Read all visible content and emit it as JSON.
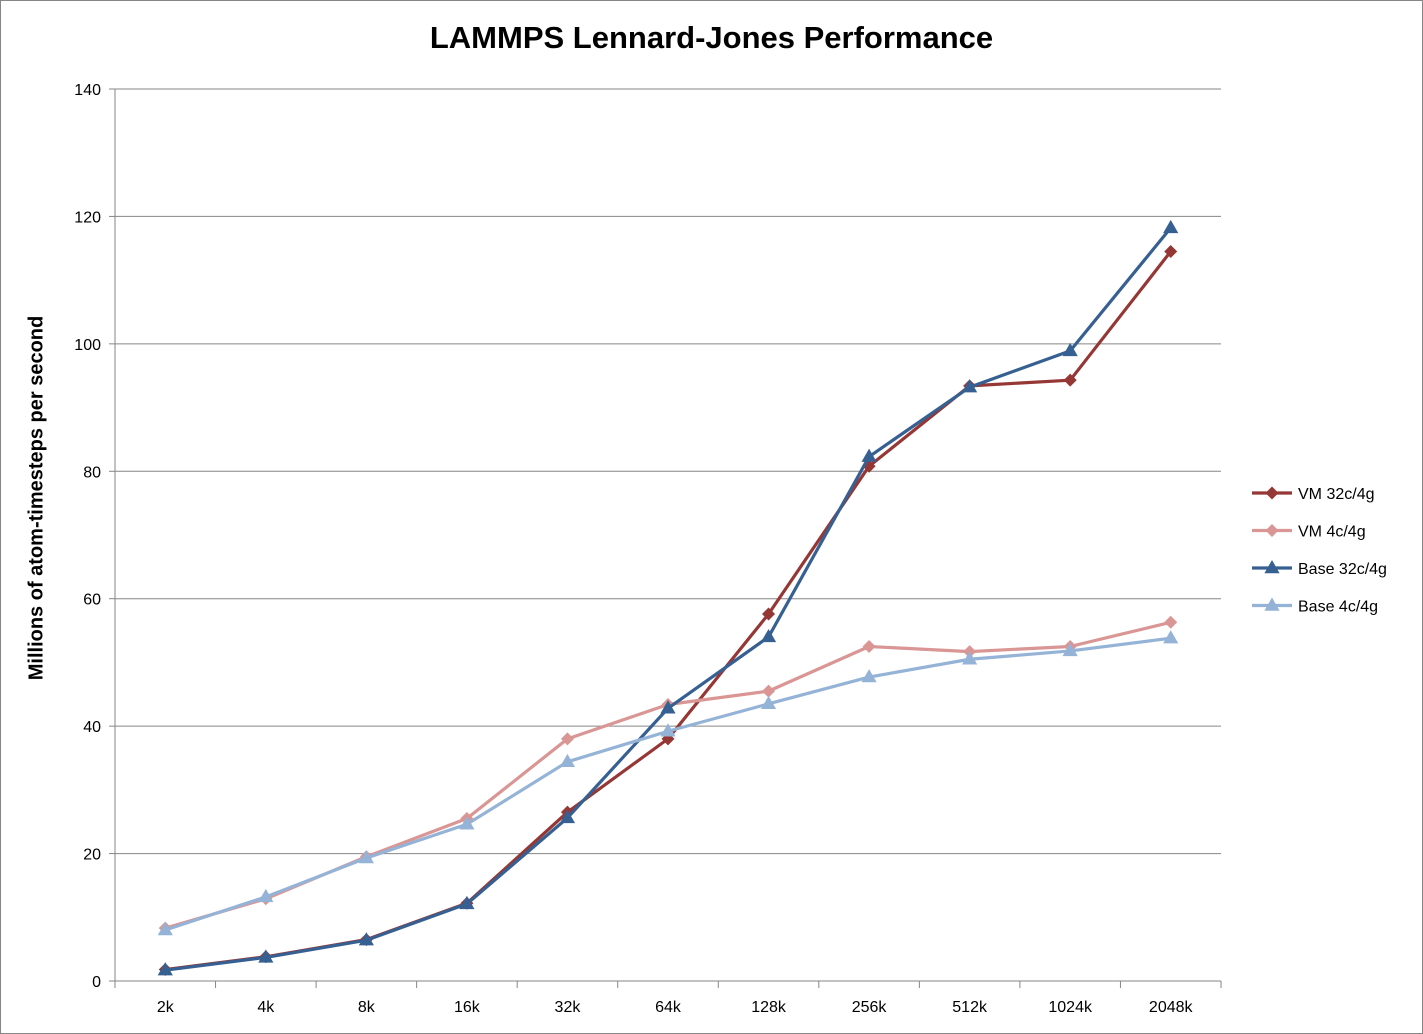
{
  "chart_data": {
    "type": "line",
    "title": "LAMMPS Lennard-Jones Performance",
    "xlabel": "",
    "ylabel": "Millions of atom-timesteps per second",
    "categories": [
      "2k",
      "4k",
      "8k",
      "16k",
      "32k",
      "64k",
      "128k",
      "256k",
      "512k",
      "1024k",
      "2048k"
    ],
    "ylim": [
      0,
      140
    ],
    "yticks": [
      0,
      20,
      40,
      60,
      80,
      100,
      120,
      140
    ],
    "grid": "horizontal",
    "legend_position": "right",
    "series": [
      {
        "name": "VM 32c/4g",
        "color": "#953735",
        "marker": "diamond",
        "values": [
          1.8,
          3.8,
          6.5,
          12.2,
          26.5,
          38.0,
          57.6,
          80.8,
          93.4,
          94.3,
          114.5
        ]
      },
      {
        "name": "VM 4c/4g",
        "color": "#D99694",
        "marker": "diamond",
        "values": [
          8.3,
          12.9,
          19.5,
          25.5,
          38.0,
          43.4,
          45.5,
          52.5,
          51.7,
          52.5,
          56.3
        ]
      },
      {
        "name": "Base 32c/4g",
        "color": "#376092",
        "marker": "triangle",
        "values": [
          1.7,
          3.7,
          6.4,
          12.1,
          25.6,
          42.8,
          54.0,
          82.3,
          93.2,
          98.9,
          118.2
        ]
      },
      {
        "name": "Base 4c/4g",
        "color": "#95B3D7",
        "marker": "triangle",
        "values": [
          8.0,
          13.2,
          19.3,
          24.6,
          34.4,
          39.2,
          43.5,
          47.7,
          50.5,
          51.8,
          53.8
        ]
      }
    ]
  }
}
